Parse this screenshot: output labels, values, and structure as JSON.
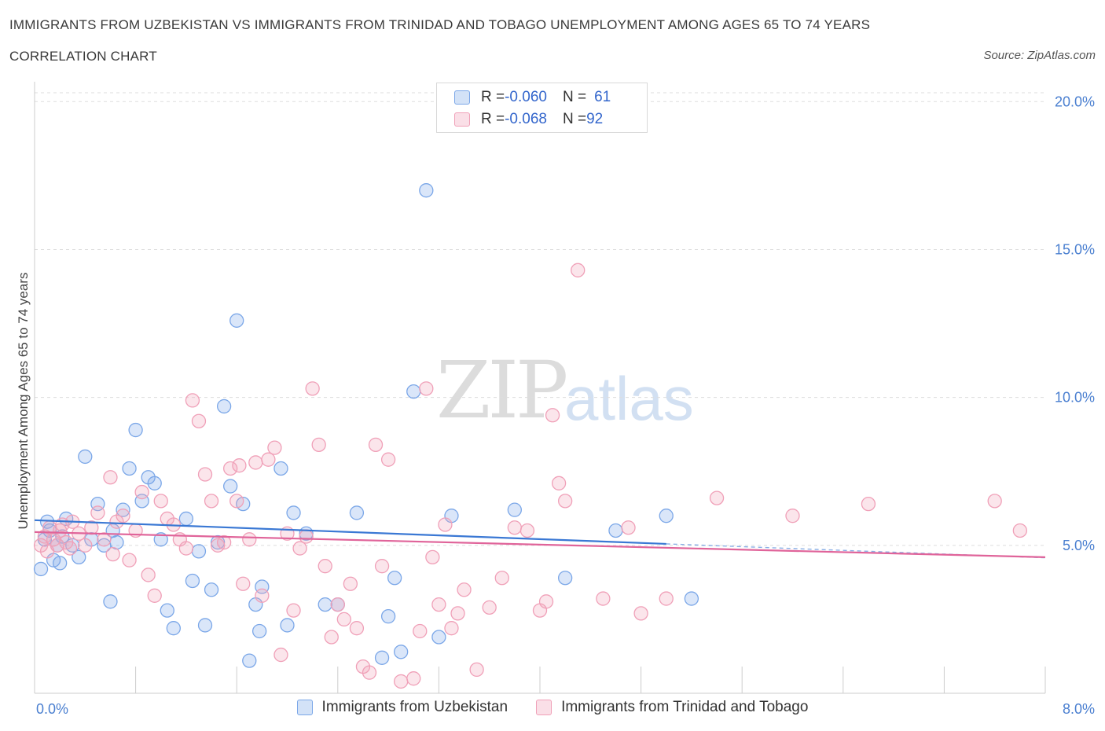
{
  "header": {
    "title": "IMMIGRANTS FROM UZBEKISTAN VS IMMIGRANTS FROM TRINIDAD AND TOBAGO UNEMPLOYMENT AMONG AGES 65 TO 74 YEARS",
    "subtitle": "CORRELATION CHART",
    "source": "Source: ZipAtlas.com"
  },
  "watermark": {
    "zip": "ZIP",
    "atlas": "atlas"
  },
  "legend": {
    "rows": [
      {
        "r_label": "R = ",
        "r_value": "-0.060",
        "n_label": "N = ",
        "n_value": "61",
        "color": "#7ba7e8"
      },
      {
        "r_label": "R = ",
        "r_value": "-0.068",
        "n_label": "N = ",
        "n_value": "92",
        "color": "#f0a0b8"
      }
    ]
  },
  "chart_data": {
    "type": "scatter",
    "title": "IMMIGRANTS FROM UZBEKISTAN VS IMMIGRANTS FROM TRINIDAD AND TOBAGO UNEMPLOYMENT AMONG AGES 65 TO 74 YEARS",
    "xlabel": "",
    "ylabel": "Unemployment Among Ages 65 to 74 years",
    "xlim": [
      0,
      8
    ],
    "ylim": [
      0,
      20
    ],
    "x_tick_labels": [
      "0.0%",
      "8.0%"
    ],
    "y_ticks": [
      5,
      10,
      15,
      20
    ],
    "y_tick_labels": [
      "5.0%",
      "10.0%",
      "15.0%",
      "20.0%"
    ],
    "grid": "horizontal dashed",
    "legend_position": "top-center",
    "series": [
      {
        "name": "Immigrants from Uzbekistan",
        "color": "#7ba7e8",
        "line_color": "#3a78d4",
        "trend": {
          "x": [
            0.0,
            5.0
          ],
          "y": [
            5.85,
            5.05
          ],
          "dashed_to": [
            8.0,
            4.58
          ]
        },
        "points": [
          [
            0.05,
            4.2
          ],
          [
            0.08,
            5.2
          ],
          [
            0.1,
            5.8
          ],
          [
            0.12,
            5.5
          ],
          [
            0.15,
            4.5
          ],
          [
            0.18,
            5.0
          ],
          [
            0.2,
            4.4
          ],
          [
            0.22,
            5.3
          ],
          [
            0.25,
            5.9
          ],
          [
            0.3,
            5.0
          ],
          [
            0.35,
            4.6
          ],
          [
            0.4,
            8.0
          ],
          [
            0.45,
            5.2
          ],
          [
            0.5,
            6.4
          ],
          [
            0.55,
            5.0
          ],
          [
            0.6,
            3.1
          ],
          [
            0.62,
            5.5
          ],
          [
            0.65,
            5.1
          ],
          [
            0.7,
            6.2
          ],
          [
            0.75,
            7.6
          ],
          [
            0.8,
            8.9
          ],
          [
            0.85,
            6.5
          ],
          [
            0.9,
            7.3
          ],
          [
            0.95,
            7.1
          ],
          [
            1.0,
            5.2
          ],
          [
            1.05,
            2.8
          ],
          [
            1.1,
            2.2
          ],
          [
            1.2,
            5.9
          ],
          [
            1.25,
            3.8
          ],
          [
            1.3,
            4.8
          ],
          [
            1.35,
            2.3
          ],
          [
            1.4,
            3.5
          ],
          [
            1.45,
            5.1
          ],
          [
            1.5,
            9.7
          ],
          [
            1.55,
            7.0
          ],
          [
            1.6,
            12.6
          ],
          [
            1.65,
            6.4
          ],
          [
            1.7,
            1.1
          ],
          [
            1.75,
            3.0
          ],
          [
            1.78,
            2.1
          ],
          [
            1.8,
            3.6
          ],
          [
            1.95,
            7.6
          ],
          [
            2.0,
            2.3
          ],
          [
            2.05,
            6.1
          ],
          [
            2.15,
            5.4
          ],
          [
            2.3,
            3.0
          ],
          [
            2.4,
            3.0
          ],
          [
            2.55,
            6.1
          ],
          [
            2.75,
            1.2
          ],
          [
            2.8,
            2.6
          ],
          [
            2.85,
            3.9
          ],
          [
            2.9,
            1.4
          ],
          [
            3.0,
            10.2
          ],
          [
            3.1,
            17.0
          ],
          [
            3.2,
            1.9
          ],
          [
            3.3,
            6.0
          ],
          [
            3.8,
            6.2
          ],
          [
            4.2,
            3.9
          ],
          [
            4.6,
            5.5
          ],
          [
            5.0,
            6.0
          ],
          [
            5.2,
            3.2
          ]
        ]
      },
      {
        "name": "Immigrants from Trinidad and Tobago",
        "color": "#f0a0b8",
        "line_color": "#e0649a",
        "trend": {
          "x": [
            0.0,
            8.0
          ],
          "y": [
            5.45,
            4.6
          ]
        },
        "points": [
          [
            0.05,
            5.0
          ],
          [
            0.08,
            5.3
          ],
          [
            0.1,
            4.8
          ],
          [
            0.12,
            5.6
          ],
          [
            0.15,
            5.2
          ],
          [
            0.18,
            5.0
          ],
          [
            0.2,
            5.5
          ],
          [
            0.22,
            5.7
          ],
          [
            0.25,
            5.1
          ],
          [
            0.28,
            4.9
          ],
          [
            0.3,
            5.8
          ],
          [
            0.35,
            5.4
          ],
          [
            0.4,
            5.0
          ],
          [
            0.45,
            5.6
          ],
          [
            0.5,
            6.1
          ],
          [
            0.55,
            5.2
          ],
          [
            0.6,
            7.3
          ],
          [
            0.62,
            4.7
          ],
          [
            0.65,
            5.8
          ],
          [
            0.7,
            6.0
          ],
          [
            0.75,
            4.5
          ],
          [
            0.8,
            5.5
          ],
          [
            0.85,
            6.8
          ],
          [
            0.9,
            4.0
          ],
          [
            0.95,
            3.3
          ],
          [
            1.0,
            6.5
          ],
          [
            1.05,
            5.9
          ],
          [
            1.1,
            5.7
          ],
          [
            1.15,
            5.2
          ],
          [
            1.2,
            4.9
          ],
          [
            1.25,
            9.9
          ],
          [
            1.3,
            9.2
          ],
          [
            1.35,
            7.4
          ],
          [
            1.4,
            6.5
          ],
          [
            1.45,
            5.0
          ],
          [
            1.5,
            5.1
          ],
          [
            1.55,
            7.6
          ],
          [
            1.6,
            6.5
          ],
          [
            1.62,
            7.7
          ],
          [
            1.65,
            3.7
          ],
          [
            1.7,
            5.2
          ],
          [
            1.75,
            7.8
          ],
          [
            1.8,
            3.3
          ],
          [
            1.85,
            7.9
          ],
          [
            1.9,
            8.3
          ],
          [
            1.95,
            1.3
          ],
          [
            2.0,
            5.4
          ],
          [
            2.05,
            2.8
          ],
          [
            2.1,
            4.9
          ],
          [
            2.15,
            5.3
          ],
          [
            2.2,
            10.3
          ],
          [
            2.25,
            8.4
          ],
          [
            2.3,
            4.3
          ],
          [
            2.35,
            1.9
          ],
          [
            2.4,
            3.0
          ],
          [
            2.45,
            2.5
          ],
          [
            2.5,
            3.7
          ],
          [
            2.55,
            2.2
          ],
          [
            2.6,
            0.9
          ],
          [
            2.65,
            0.7
          ],
          [
            2.7,
            8.4
          ],
          [
            2.75,
            4.3
          ],
          [
            2.8,
            7.9
          ],
          [
            2.9,
            0.4
          ],
          [
            3.0,
            0.5
          ],
          [
            3.05,
            2.1
          ],
          [
            3.1,
            10.3
          ],
          [
            3.15,
            4.6
          ],
          [
            3.2,
            3.0
          ],
          [
            3.25,
            5.7
          ],
          [
            3.3,
            2.2
          ],
          [
            3.35,
            2.7
          ],
          [
            3.4,
            3.5
          ],
          [
            3.5,
            0.8
          ],
          [
            3.6,
            2.9
          ],
          [
            3.7,
            3.9
          ],
          [
            3.8,
            5.6
          ],
          [
            3.9,
            5.5
          ],
          [
            4.0,
            2.8
          ],
          [
            4.05,
            3.1
          ],
          [
            4.1,
            9.4
          ],
          [
            4.15,
            7.1
          ],
          [
            4.2,
            6.5
          ],
          [
            4.3,
            14.3
          ],
          [
            4.5,
            3.2
          ],
          [
            4.7,
            5.6
          ],
          [
            4.8,
            2.7
          ],
          [
            5.0,
            3.2
          ],
          [
            5.4,
            6.6
          ],
          [
            6.0,
            6.0
          ],
          [
            6.6,
            6.4
          ],
          [
            7.6,
            6.5
          ],
          [
            7.8,
            5.5
          ]
        ]
      }
    ]
  },
  "bottom_legend": {
    "items": [
      {
        "label": "Immigrants from Uzbekistan",
        "color": "#7ba7e8"
      },
      {
        "label": "Immigrants from Trinidad and Tobago",
        "color": "#f0a0b8"
      }
    ]
  }
}
